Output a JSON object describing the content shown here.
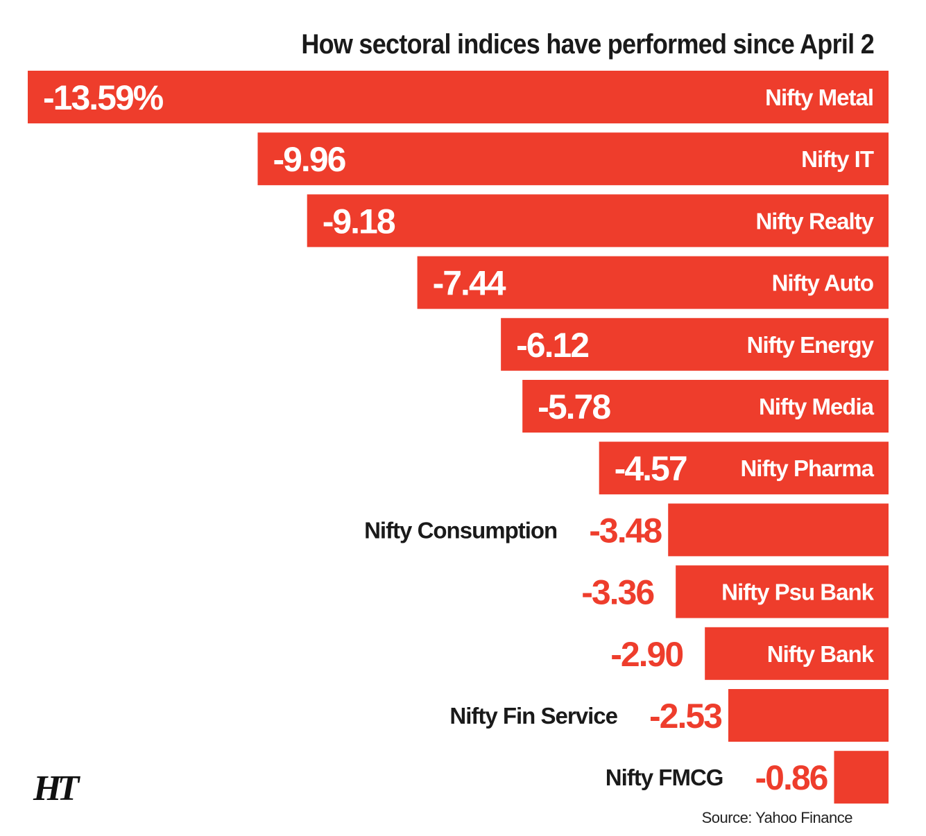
{
  "chart_data": {
    "type": "bar",
    "orientation": "horizontal",
    "title": "How sectoral indices have performed since April 2",
    "categories": [
      "Nifty Metal",
      "Nifty IT",
      "Nifty Realty",
      "Nifty Auto",
      "Nifty Energy",
      "Nifty Media",
      "Nifty Pharma",
      "Nifty Consumption",
      "Nifty Psu Bank",
      "Nifty Bank",
      "Nifty Fin Service",
      "Nifty FMCG"
    ],
    "values": [
      -13.59,
      -9.96,
      -9.18,
      -7.44,
      -6.12,
      -5.78,
      -4.57,
      -3.48,
      -3.36,
      -2.9,
      -2.53,
      -0.86
    ],
    "value_labels": [
      "-13.59%",
      "-9.96",
      "-9.18",
      "-7.44",
      "-6.12",
      "-5.78",
      "-4.57",
      "-3.48",
      "-3.36",
      "-2.90",
      "-2.53",
      "-0.86"
    ],
    "unit": "%",
    "bar_color": "#ee3d2c",
    "xlim": [
      -13.59,
      0
    ]
  },
  "logo_text": "HT",
  "source": "Source: Yahoo Finance"
}
